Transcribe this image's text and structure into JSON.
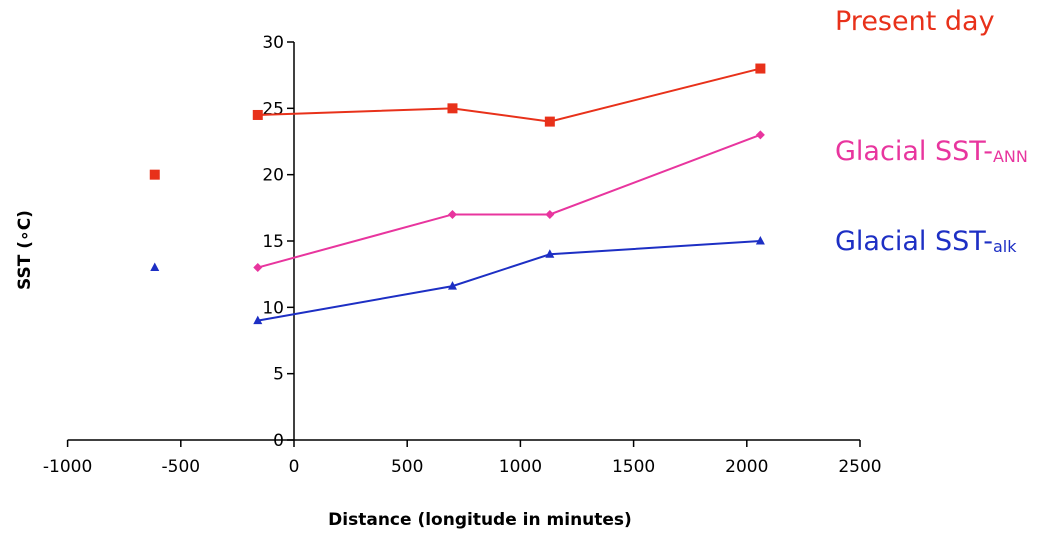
{
  "chart_data": {
    "type": "line",
    "title": "",
    "xlabel": "Distance (longitude in minutes)",
    "ylabel": "SST (∘C)",
    "xlim": [
      -1000,
      2500
    ],
    "ylim": [
      0,
      30
    ],
    "xticks": [
      -1000,
      -500,
      0,
      500,
      1000,
      1500,
      2000,
      2500
    ],
    "yticks": [
      0,
      5,
      10,
      15,
      20,
      25,
      30
    ],
    "grid": false,
    "series": [
      {
        "name": "Present day",
        "label_main": "Present day",
        "label_sub": "",
        "color": "#e8311a",
        "marker": "square",
        "x": [
          -160,
          700,
          1130,
          2060
        ],
        "y": [
          24.5,
          25,
          24,
          28
        ],
        "isolated": [
          {
            "x": -615,
            "y": 20
          }
        ]
      },
      {
        "name": "Glacial SST-ANN",
        "label_main": "Glacial SST-",
        "label_sub": "ANN",
        "color": "#e8359e",
        "marker": "diamond",
        "x": [
          -160,
          700,
          1130,
          2060
        ],
        "y": [
          13,
          17,
          17,
          23
        ],
        "isolated": []
      },
      {
        "name": "Glacial SST-alk",
        "label_main": "Glacial SST-",
        "label_sub": "alk",
        "color": "#1d2fc4",
        "marker": "triangle",
        "x": [
          -160,
          700,
          1130,
          2060
        ],
        "y": [
          9,
          11.6,
          14,
          15
        ],
        "isolated": [
          {
            "x": -615,
            "y": 13
          }
        ]
      }
    ],
    "legend_placement": "right"
  }
}
